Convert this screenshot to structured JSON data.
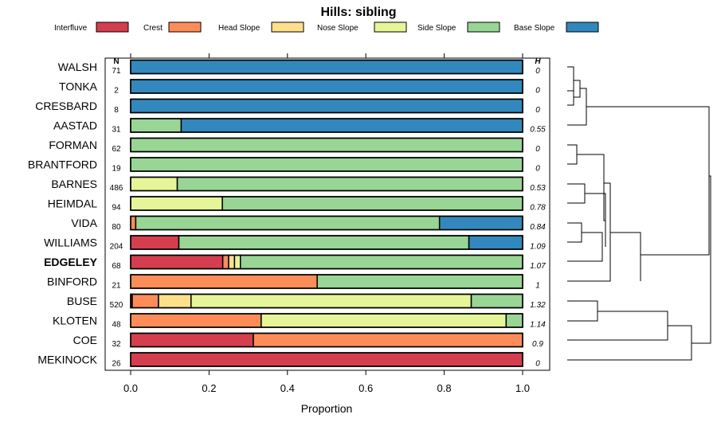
{
  "chart_data": {
    "type": "bar",
    "orientation": "horizontal",
    "stacked": true,
    "title": "Hills: sibling",
    "xlabel": "Proportion",
    "xlim": [
      0,
      1
    ],
    "xticks": [
      "0.0",
      "0.2",
      "0.4",
      "0.6",
      "0.8",
      "1.0"
    ],
    "n_header": "N",
    "h_header": "H",
    "highlight": "EDGELEY",
    "legend": [
      {
        "name": "Interfluve",
        "color": "#d53e4f"
      },
      {
        "name": "Crest",
        "color": "#fc8d59"
      },
      {
        "name": "Head Slope",
        "color": "#fee08b"
      },
      {
        "name": "Nose Slope",
        "color": "#e6f598"
      },
      {
        "name": "Side Slope",
        "color": "#99d594"
      },
      {
        "name": "Base Slope",
        "color": "#3288bd"
      }
    ],
    "categories": [
      "WALSH",
      "TONKA",
      "CRESBARD",
      "AASTAD",
      "FORMAN",
      "BRANTFORD",
      "BARNES",
      "HEIMDAL",
      "VIDA",
      "WILLIAMS",
      "EDGELEY",
      "BINFORD",
      "BUSE",
      "KLOTEN",
      "COE",
      "MEKINOCK"
    ],
    "n": [
      "71",
      "2",
      "8",
      "31",
      "62",
      "19",
      "486",
      "94",
      "80",
      "204",
      "68",
      "21",
      "520",
      "48",
      "32",
      "26"
    ],
    "h": [
      "0",
      "0",
      "0",
      "0.55",
      "0",
      "0",
      "0.53",
      "0.78",
      "0.84",
      "1.09",
      "1.07",
      "1",
      "1.32",
      "1.14",
      "0.9",
      "0"
    ],
    "series": [
      {
        "name": "Interfluve",
        "values": [
          0,
          0,
          0,
          0,
          0,
          0,
          0,
          0,
          0,
          0.123,
          0.235,
          0,
          0.004,
          0,
          0.313,
          1
        ]
      },
      {
        "name": "Crest",
        "values": [
          0,
          0,
          0,
          0,
          0,
          0,
          0,
          0,
          0.013,
          0,
          0.015,
          0.476,
          0.067,
          0.333,
          0.687,
          0
        ]
      },
      {
        "name": "Head Slope",
        "values": [
          0,
          0,
          0,
          0,
          0,
          0,
          0,
          0,
          0,
          0,
          0.015,
          0,
          0.083,
          0,
          0,
          0
        ]
      },
      {
        "name": "Nose Slope",
        "values": [
          0,
          0,
          0,
          0,
          0,
          0,
          0.119,
          0.234,
          0,
          0,
          0.015,
          0,
          0.715,
          0.625,
          0,
          0
        ]
      },
      {
        "name": "Side Slope",
        "values": [
          0,
          0,
          0,
          0.129,
          1,
          1,
          0.881,
          0.766,
          0.775,
          0.74,
          0.72,
          0.524,
          0.131,
          0.042,
          0,
          0
        ]
      },
      {
        "name": "Base Slope",
        "values": [
          1,
          1,
          1,
          0.871,
          0,
          0,
          0,
          0,
          0.212,
          0.137,
          0,
          0,
          0,
          0,
          0,
          0
        ]
      }
    ]
  }
}
